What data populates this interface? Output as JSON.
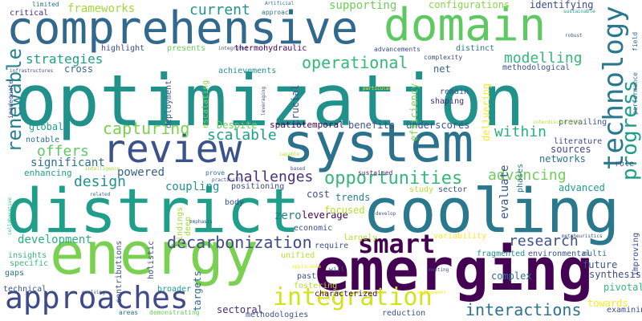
{
  "word_cloud": {
    "words": [
      {
        "text": "optimization",
        "color": "#21918c"
      },
      {
        "text": "district",
        "color": "#1f9e89"
      },
      {
        "text": "cooling",
        "color": "#2a788e"
      },
      {
        "text": "system",
        "color": "#2c728e"
      },
      {
        "text": "energy",
        "color": "#7ad151"
      },
      {
        "text": "emerging",
        "color": "#440154"
      },
      {
        "text": "comprehensive",
        "color": "#31688e"
      },
      {
        "text": "domain",
        "color": "#5ec962"
      },
      {
        "text": "review",
        "color": "#3b528b"
      },
      {
        "text": "approaches",
        "color": "#3e4a89"
      },
      {
        "text": "integration",
        "color": "#d2e21b"
      },
      {
        "text": "technology",
        "color": "#2a788e"
      },
      {
        "text": "renewable",
        "color": "#26828e"
      },
      {
        "text": "smart",
        "color": "#440154"
      },
      {
        "text": "opportunities",
        "color": "#35b779"
      },
      {
        "text": "decarbonization",
        "color": "#3e4a89"
      },
      {
        "text": "capturing",
        "color": "#7ad151"
      },
      {
        "text": "operational",
        "color": "#35b779"
      },
      {
        "text": "challenges",
        "color": "#472d7b"
      },
      {
        "text": "progress",
        "color": "#1f9e89"
      },
      {
        "text": "advancing",
        "color": "#6ece58"
      },
      {
        "text": "interactions",
        "color": "#2c728e"
      },
      {
        "text": "research",
        "color": "#3b528b"
      },
      {
        "text": "current",
        "color": "#21918c"
      },
      {
        "text": "strategies",
        "color": "#1f9e89"
      },
      {
        "text": "modelling",
        "color": "#35b779"
      },
      {
        "text": "scalable",
        "color": "#1f9e89"
      },
      {
        "text": "offers",
        "color": "#5ec962"
      },
      {
        "text": "within",
        "color": "#29af7f"
      },
      {
        "text": "design",
        "color": "#21918c"
      },
      {
        "text": "development",
        "color": "#29af7f"
      },
      {
        "text": "frameworks",
        "color": "#a0da39"
      },
      {
        "text": "supporting",
        "color": "#6ece58"
      },
      {
        "text": "configurations",
        "color": "#86d549"
      },
      {
        "text": "identifying",
        "color": "#3e4a89"
      },
      {
        "text": "significant",
        "color": "#2c728e"
      },
      {
        "text": "evaluate",
        "color": "#38598c"
      },
      {
        "text": "powered",
        "color": "#355f8d"
      },
      {
        "text": "coupling",
        "color": "#21918c"
      },
      {
        "text": "leverage",
        "color": "#440154"
      },
      {
        "text": "zero",
        "color": "#287c8e"
      },
      {
        "text": "advanced",
        "color": "#1f9e89"
      },
      {
        "text": "sources",
        "color": "#3e4a89"
      },
      {
        "text": "networks",
        "color": "#2c728e"
      },
      {
        "text": "complex",
        "color": "#2c728e"
      },
      {
        "text": "pivotal",
        "color": "#35b779"
      },
      {
        "text": "towards",
        "color": "#fde725"
      },
      {
        "text": "sectoral",
        "color": "#482878"
      },
      {
        "text": "targets",
        "color": "#31688e"
      },
      {
        "text": "thermohydraulic",
        "color": "#440154"
      },
      {
        "text": "spatiotemporal",
        "color": "#440154"
      },
      {
        "text": "methodological",
        "color": "#3b528b"
      },
      {
        "text": "underscores",
        "color": "#3b528b"
      },
      {
        "text": "cross",
        "color": "#31688e"
      },
      {
        "text": "global",
        "color": "#1f9e89"
      },
      {
        "text": "Despite",
        "color": "#6ece58"
      },
      {
        "text": "benefits",
        "color": "#3b528b"
      },
      {
        "text": "delivering",
        "color": "#fde725"
      },
      {
        "text": "efficiency",
        "color": "#7ad151"
      },
      {
        "text": "crucial",
        "color": "#3b528b"
      },
      {
        "text": "net",
        "color": "#31688e"
      },
      {
        "text": "distinct",
        "color": "#2a788e"
      },
      {
        "text": "cost",
        "color": "#3b528b"
      },
      {
        "text": "trends",
        "color": "#287c8e"
      },
      {
        "text": "study",
        "color": "#b5de2b"
      },
      {
        "text": "sector",
        "color": "#3b528b"
      },
      {
        "text": "focused",
        "color": "#b5de2b"
      },
      {
        "text": "enhancing",
        "color": "#1f9e89"
      },
      {
        "text": "notable",
        "color": "#2c728e"
      },
      {
        "text": "role",
        "color": "#3e4a89"
      },
      {
        "text": "examining",
        "color": "#3e4a89"
      },
      {
        "text": "future",
        "color": "#3b528b"
      },
      {
        "text": "multi",
        "color": "#2c728e"
      },
      {
        "text": "synthesis",
        "color": "#3e4a89"
      },
      {
        "text": "improving",
        "color": "#3e4a89"
      },
      {
        "text": "performance",
        "color": "#31688e"
      },
      {
        "text": "field",
        "color": "#31688e"
      },
      {
        "text": "literature",
        "color": "#3e4a89"
      },
      {
        "text": "prevailing",
        "color": "#3b528b"
      },
      {
        "text": "phases",
        "color": "#2c728e"
      },
      {
        "text": "highlight",
        "color": "#3e4a89"
      },
      {
        "text": "presents",
        "color": "#6ece58"
      },
      {
        "text": "achievements",
        "color": "#21918c"
      },
      {
        "text": "deployment",
        "color": "#38598c"
      },
      {
        "text": "escalating",
        "color": "#86d549"
      },
      {
        "text": "positioning",
        "color": "#3e4a89"
      },
      {
        "text": "economic",
        "color": "#3b528b"
      },
      {
        "text": "largely",
        "color": "#b5de2b"
      },
      {
        "text": "require",
        "color": "#3b528b"
      },
      {
        "text": "unified",
        "color": "#b5de2b"
      },
      {
        "text": "past",
        "color": "#3b528b"
      },
      {
        "text": "fostering",
        "color": "#b5de2b"
      },
      {
        "text": "characterized",
        "color": "#440154"
      },
      {
        "text": "reduction",
        "color": "#3b528b"
      },
      {
        "text": "methodologies",
        "color": "#3b528b"
      },
      {
        "text": "demonstrating",
        "color": "#6ece58"
      },
      {
        "text": "areas",
        "color": "#31688e"
      },
      {
        "text": "broader",
        "color": "#1f9e89"
      },
      {
        "text": "technical",
        "color": "#3b528b"
      },
      {
        "text": "gaps",
        "color": "#2c728e"
      },
      {
        "text": "specific",
        "color": "#35b779"
      },
      {
        "text": "insights",
        "color": "#35b779"
      },
      {
        "text": "contributions",
        "color": "#3b528b"
      },
      {
        "text": "holistic",
        "color": "#3e4a89"
      },
      {
        "text": "findings",
        "color": "#a0da39"
      },
      {
        "text": "deep",
        "color": "#a0da39"
      },
      {
        "text": "body",
        "color": "#3b528b"
      },
      {
        "text": "environmental",
        "color": "#3b528b"
      },
      {
        "text": "fragmented",
        "color": "#21918c"
      },
      {
        "text": "variability",
        "color": "#fde725"
      },
      {
        "text": "remain",
        "color": "#3b528b"
      },
      {
        "text": "shaping",
        "color": "#482878"
      },
      {
        "text": "complexity",
        "color": "#3e4a89"
      },
      {
        "text": "advancements",
        "color": "#3e4a89"
      },
      {
        "text": "critical",
        "color": "#482878"
      },
      {
        "text": "limited",
        "color": "#2c728e"
      },
      {
        "text": "infrastructures",
        "color": "#3e4a89"
      },
      {
        "text": "inadequate",
        "color": "#3e4a89"
      },
      {
        "text": "integrated",
        "color": "#3e4a89"
      },
      {
        "text": "approach",
        "color": "#2c728e"
      },
      {
        "text": "Artificial",
        "color": "#2c728e"
      },
      {
        "text": "robust",
        "color": "#3b528b"
      },
      {
        "text": "sustainable",
        "color": "#1f9e89"
      },
      {
        "text": "particular",
        "color": "#fde725"
      },
      {
        "text": "leveraging",
        "color": "#3e4a89"
      },
      {
        "text": "interdisciplinary",
        "color": "#b5de2b"
      },
      {
        "text": "sustained",
        "color": "#482878"
      },
      {
        "text": "prove",
        "color": "#2c728e"
      },
      {
        "text": "capable",
        "color": "#b5de2b"
      },
      {
        "text": "based",
        "color": "#3b528b"
      },
      {
        "text": "practically",
        "color": "#3b528b"
      },
      {
        "text": "Intelligence",
        "color": "#a0da39"
      },
      {
        "text": "related",
        "color": "#2c728e"
      },
      {
        "text": "collaborative",
        "color": "#35b779"
      },
      {
        "text": "emphasis",
        "color": "#3b528b"
      },
      {
        "text": "will",
        "color": "#3b528b"
      },
      {
        "text": "develop",
        "color": "#3b528b"
      },
      {
        "text": "metaheuristics",
        "color": "#3b528b"
      },
      {
        "text": "applicable",
        "color": "#fde725"
      },
      {
        "text": "meeting",
        "color": "#3b528b"
      },
      {
        "text": "evolving",
        "color": "#3b528b"
      },
      {
        "text": "engagement",
        "color": "#fde725"
      }
    ]
  }
}
